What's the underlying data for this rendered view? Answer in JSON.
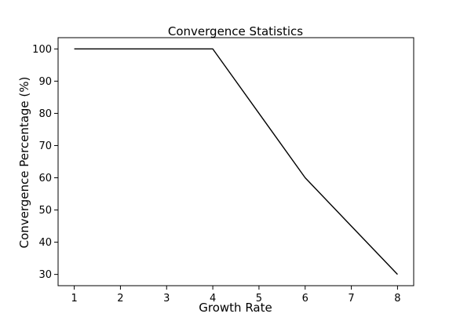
{
  "chart_data": {
    "type": "line",
    "title": "Convergence Statistics",
    "xlabel": "Growth Rate",
    "ylabel": "Convergence Percentage (%)",
    "x": [
      1,
      2,
      3,
      4,
      5,
      6,
      7,
      8
    ],
    "series": [
      {
        "values": [
          100,
          100,
          100,
          100,
          80,
          60,
          45,
          30
        ],
        "color": "#000000"
      }
    ],
    "xlim": [
      0.65,
      8.35
    ],
    "ylim": [
      26.5,
      103.5
    ],
    "xticks": [
      "1",
      "2",
      "3",
      "4",
      "5",
      "6",
      "7",
      "8"
    ],
    "yticks": [
      "30",
      "40",
      "50",
      "60",
      "70",
      "80",
      "90",
      "100"
    ],
    "grid": false,
    "legend": "none"
  }
}
